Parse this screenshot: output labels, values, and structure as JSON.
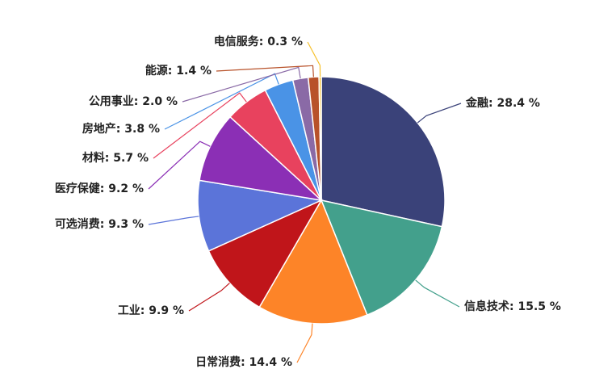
{
  "chart_data": {
    "type": "pie",
    "values": [
      28.4,
      15.5,
      14.4,
      9.9,
      9.3,
      9.2,
      5.7,
      3.8,
      2.0,
      1.4,
      0.3
    ],
    "value_labels": [
      "金融: 28.4 %",
      "信息技术: 15.5 %",
      "日常消费: 14.4 %",
      "工业: 9.9 %",
      "可选消费: 9.3 %",
      "医疗保健: 9.2 %",
      "材料: 5.7 %",
      "房地产: 3.8 %",
      "公用事业: 2.0 %",
      "能源: 1.4 %",
      "电信服务: 0.3 %"
    ],
    "colors": [
      "#3a4279",
      "#43a08c",
      "#fd8428",
      "#c0151a",
      "#5b74d9",
      "#8b2fb5",
      "#e8425e",
      "#4a93e6",
      "#8a6aa6",
      "#b8522a",
      "#f6c02b"
    ]
  }
}
